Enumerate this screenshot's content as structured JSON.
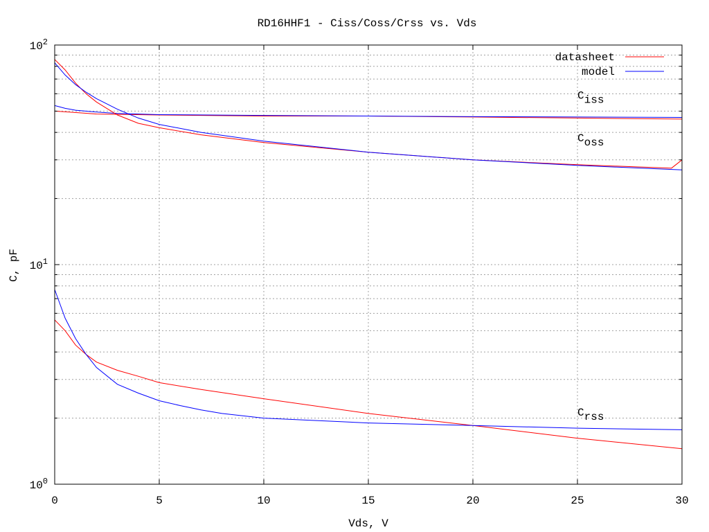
{
  "chart_data": {
    "type": "line",
    "title": "RD16HHF1 - Ciss/Coss/Crss vs. Vds",
    "xlabel": "Vds, V",
    "ylabel": "C, pF",
    "xlim": [
      0,
      30
    ],
    "ylim": [
      1,
      100
    ],
    "yscale": "log",
    "grid": true,
    "legend_position": "top-right",
    "x_ticks": [
      0,
      5,
      10,
      15,
      20,
      25,
      30
    ],
    "y_ticks": [
      {
        "value": 1,
        "base": "10",
        "exp": "0"
      },
      {
        "value": 10,
        "base": "10",
        "exp": "1"
      },
      {
        "value": 100,
        "base": "10",
        "exp": "2"
      }
    ],
    "legend": [
      {
        "label": "datasheet",
        "color": "#ff0000"
      },
      {
        "label": "model",
        "color": "#0000ff"
      }
    ],
    "annotations": [
      {
        "base": "C",
        "sub": "iss",
        "x": 25,
        "y": 57
      },
      {
        "base": "C",
        "sub": "oss",
        "x": 25,
        "y": 36.5
      },
      {
        "base": "C",
        "sub": "rss",
        "x": 25,
        "y": 2.05
      }
    ],
    "series": [
      {
        "name": "datasheet",
        "curve": "Ciss",
        "color": "#ff0000",
        "x": [
          0,
          2,
          5,
          10,
          15,
          20,
          25,
          30
        ],
        "y": [
          50,
          48.5,
          48,
          47.5,
          47.5,
          47,
          46.5,
          46
        ]
      },
      {
        "name": "model",
        "curve": "Ciss",
        "color": "#0000ff",
        "x": [
          0,
          0.5,
          1,
          2,
          3,
          5,
          10,
          15,
          20,
          25,
          30
        ],
        "y": [
          53,
          51.5,
          50.5,
          49.5,
          48.8,
          48.2,
          47.8,
          47.5,
          47.2,
          47,
          46.8
        ]
      },
      {
        "name": "datasheet",
        "curve": "Coss",
        "color": "#ff0000",
        "x": [
          0,
          0.5,
          1,
          1.5,
          2,
          3,
          4,
          5,
          7,
          10,
          15,
          20,
          25,
          29.5,
          30
        ],
        "y": [
          86,
          77,
          67,
          60,
          55,
          48,
          44,
          42,
          39,
          36,
          32.5,
          30,
          28.5,
          27.5,
          30
        ]
      },
      {
        "name": "model",
        "curve": "Coss",
        "color": "#0000ff",
        "x": [
          0,
          0.5,
          1,
          1.5,
          2,
          3,
          4,
          5,
          7,
          10,
          15,
          20,
          25,
          30
        ],
        "y": [
          83,
          73,
          66,
          61,
          57,
          51,
          46.5,
          43.5,
          40,
          36.5,
          32.5,
          30,
          28.3,
          27
        ]
      },
      {
        "name": "datasheet",
        "curve": "Crss",
        "color": "#ff0000",
        "x": [
          0,
          0.5,
          1,
          1.5,
          2,
          3,
          4,
          5,
          7,
          10,
          15,
          20,
          25,
          30
        ],
        "y": [
          5.6,
          5,
          4.3,
          3.9,
          3.6,
          3.3,
          3.1,
          2.9,
          2.7,
          2.45,
          2.1,
          1.85,
          1.62,
          1.45
        ]
      },
      {
        "name": "model",
        "curve": "Crss",
        "color": "#0000ff",
        "x": [
          0,
          0.5,
          1,
          1.5,
          2,
          3,
          4,
          5,
          6,
          7,
          8,
          10,
          15,
          20,
          25,
          30
        ],
        "y": [
          7.7,
          5.7,
          4.6,
          3.9,
          3.4,
          2.85,
          2.6,
          2.4,
          2.28,
          2.18,
          2.1,
          2.0,
          1.9,
          1.85,
          1.8,
          1.77
        ]
      }
    ]
  }
}
